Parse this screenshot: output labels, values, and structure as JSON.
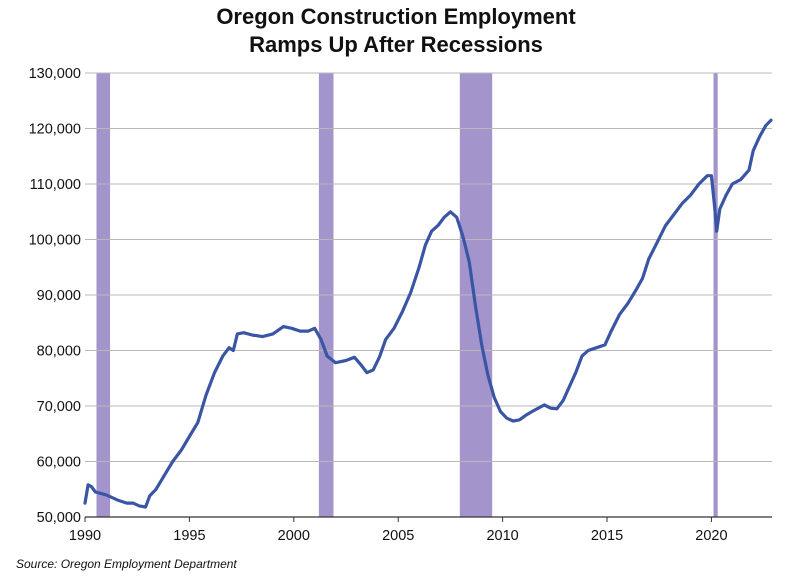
{
  "chart_data": {
    "type": "line",
    "title_lines": [
      "Oregon Construction Employment",
      "Ramps Up After Recessions"
    ],
    "source": "Source: Oregon Employment Department",
    "xlabel": "",
    "ylabel": "",
    "xlim": [
      1990,
      2022.9
    ],
    "ylim": [
      50000,
      130000
    ],
    "x_ticks": [
      1990,
      1995,
      2000,
      2005,
      2010,
      2015,
      2020
    ],
    "x_tick_labels": [
      "1990",
      "1995",
      "2000",
      "2005",
      "2010",
      "2015",
      "2020"
    ],
    "y_ticks": [
      50000,
      60000,
      70000,
      80000,
      90000,
      100000,
      110000,
      120000,
      130000
    ],
    "y_tick_labels": [
      "50,000",
      "60,000",
      "70,000",
      "80,000",
      "90,000",
      "100,000",
      "110,000",
      "120,000",
      "130,000"
    ],
    "grid": "horizontal",
    "legend": "none",
    "line_color": "#3a55a4",
    "recession_color": "#a394cc",
    "recessions": [
      {
        "start": 1990.55,
        "end": 1991.2
      },
      {
        "start": 2001.2,
        "end": 2001.9
      },
      {
        "start": 2007.95,
        "end": 2009.5
      },
      {
        "start": 2020.1,
        "end": 2020.3
      }
    ],
    "series": [
      {
        "points": [
          [
            1990.0,
            52500
          ],
          [
            1990.15,
            55800
          ],
          [
            1990.3,
            55500
          ],
          [
            1990.5,
            54500
          ],
          [
            1990.8,
            54200
          ],
          [
            1991.0,
            54000
          ],
          [
            1991.3,
            53500
          ],
          [
            1991.6,
            53000
          ],
          [
            1992.0,
            52500
          ],
          [
            1992.3,
            52500
          ],
          [
            1992.6,
            52000
          ],
          [
            1992.9,
            51800
          ],
          [
            1993.1,
            53800
          ],
          [
            1993.4,
            55000
          ],
          [
            1993.8,
            57500
          ],
          [
            1994.2,
            60000
          ],
          [
            1994.6,
            62000
          ],
          [
            1995.0,
            64500
          ],
          [
            1995.4,
            67000
          ],
          [
            1995.8,
            72000
          ],
          [
            1996.2,
            76000
          ],
          [
            1996.6,
            79000
          ],
          [
            1996.9,
            80500
          ],
          [
            1997.1,
            80000
          ],
          [
            1997.3,
            83000
          ],
          [
            1997.6,
            83200
          ],
          [
            1998.0,
            82800
          ],
          [
            1998.5,
            82500
          ],
          [
            1999.0,
            83000
          ],
          [
            1999.5,
            84300
          ],
          [
            1999.9,
            84000
          ],
          [
            2000.3,
            83500
          ],
          [
            2000.7,
            83500
          ],
          [
            2001.0,
            84000
          ],
          [
            2001.3,
            82000
          ],
          [
            2001.6,
            79000
          ],
          [
            2002.0,
            77800
          ],
          [
            2002.5,
            78200
          ],
          [
            2002.9,
            78800
          ],
          [
            2003.2,
            77500
          ],
          [
            2003.5,
            76000
          ],
          [
            2003.8,
            76500
          ],
          [
            2004.1,
            78800
          ],
          [
            2004.4,
            82000
          ],
          [
            2004.8,
            84000
          ],
          [
            2005.2,
            87000
          ],
          [
            2005.6,
            90500
          ],
          [
            2006.0,
            95000
          ],
          [
            2006.3,
            99000
          ],
          [
            2006.6,
            101500
          ],
          [
            2006.9,
            102500
          ],
          [
            2007.2,
            104000
          ],
          [
            2007.5,
            105000
          ],
          [
            2007.8,
            104000
          ],
          [
            2008.1,
            100500
          ],
          [
            2008.4,
            96000
          ],
          [
            2008.7,
            88000
          ],
          [
            2009.0,
            81000
          ],
          [
            2009.3,
            75500
          ],
          [
            2009.6,
            71500
          ],
          [
            2009.9,
            69000
          ],
          [
            2010.2,
            67800
          ],
          [
            2010.5,
            67300
          ],
          [
            2010.8,
            67500
          ],
          [
            2011.1,
            68300
          ],
          [
            2011.4,
            69000
          ],
          [
            2011.8,
            69800
          ],
          [
            2012.0,
            70200
          ],
          [
            2012.3,
            69600
          ],
          [
            2012.6,
            69500
          ],
          [
            2012.9,
            71000
          ],
          [
            2013.2,
            73500
          ],
          [
            2013.5,
            76000
          ],
          [
            2013.8,
            79000
          ],
          [
            2014.1,
            80000
          ],
          [
            2014.5,
            80500
          ],
          [
            2014.9,
            81000
          ],
          [
            2015.2,
            83500
          ],
          [
            2015.6,
            86500
          ],
          [
            2016.0,
            88500
          ],
          [
            2016.4,
            91000
          ],
          [
            2016.7,
            93000
          ],
          [
            2017.0,
            96500
          ],
          [
            2017.4,
            99500
          ],
          [
            2017.8,
            102500
          ],
          [
            2018.2,
            104500
          ],
          [
            2018.6,
            106500
          ],
          [
            2019.0,
            108000
          ],
          [
            2019.4,
            110000
          ],
          [
            2019.8,
            111500
          ],
          [
            2020.0,
            111500
          ],
          [
            2020.15,
            106000
          ],
          [
            2020.25,
            101500
          ],
          [
            2020.4,
            105500
          ],
          [
            2020.7,
            108000
          ],
          [
            2021.0,
            110000
          ],
          [
            2021.4,
            110800
          ],
          [
            2021.8,
            112500
          ],
          [
            2022.0,
            116000
          ],
          [
            2022.3,
            118500
          ],
          [
            2022.6,
            120500
          ],
          [
            2022.85,
            121500
          ]
        ]
      }
    ]
  }
}
